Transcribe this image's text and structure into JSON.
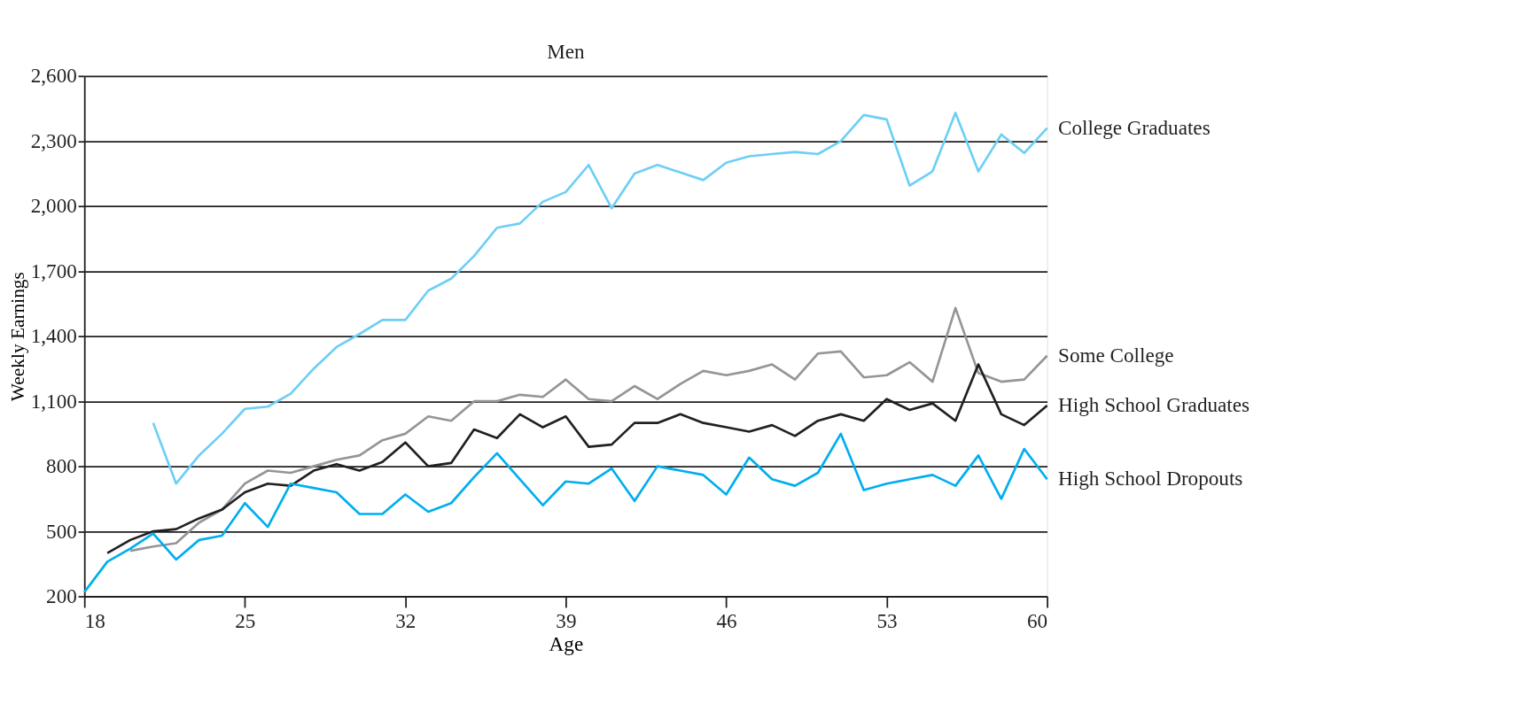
{
  "chart_data": {
    "type": "line",
    "title": "Men",
    "xlabel": "Age",
    "ylabel": "Weekly Earnings",
    "xlim": [
      18,
      60
    ],
    "xticks": [
      18,
      25,
      32,
      39,
      46,
      53,
      60
    ],
    "ylim": [
      200,
      2600
    ],
    "yticks": [
      200,
      500,
      800,
      {
        "value": 1100,
        "label": "1,100"
      },
      {
        "value": 1400,
        "label": "1,400"
      },
      {
        "value": 1700,
        "label": "1,700"
      },
      {
        "value": 2000,
        "label": "2,000"
      },
      {
        "value": 2300,
        "label": "2,300"
      },
      {
        "value": 2600,
        "label": "2,600"
      }
    ],
    "grid": "y",
    "legend": false,
    "line_style": "solid",
    "marker": "none",
    "series": [
      {
        "name": "College Graduates",
        "color": "#6dcff6",
        "x": [
          21,
          22,
          23,
          24,
          25,
          26,
          27,
          28,
          29,
          30,
          31,
          32,
          33,
          34,
          35,
          36,
          37,
          38,
          39,
          40,
          41,
          42,
          43,
          44,
          45,
          46,
          47,
          48,
          49,
          50,
          51,
          52,
          53,
          54,
          55,
          56,
          57,
          58,
          59,
          60
        ],
        "values": [
          1000,
          720,
          850,
          950,
          1065,
          1075,
          1135,
          1250,
          1350,
          1410,
          1475,
          1475,
          1610,
          1665,
          1770,
          1900,
          1920,
          2020,
          2065,
          2190,
          1990,
          2150,
          2190,
          2155,
          2120,
          2200,
          2230,
          2240,
          2250,
          2240,
          2300,
          2420,
          2400,
          2095,
          2160,
          2430,
          2160,
          2330,
          2245,
          2360
        ]
      },
      {
        "name": "Some College",
        "color": "#939598",
        "x": [
          20,
          21,
          22,
          23,
          24,
          25,
          26,
          27,
          28,
          29,
          30,
          31,
          32,
          33,
          34,
          35,
          36,
          37,
          38,
          39,
          40,
          41,
          42,
          43,
          44,
          45,
          46,
          47,
          48,
          49,
          50,
          51,
          52,
          53,
          54,
          55,
          56,
          57,
          58,
          59,
          60
        ],
        "values": [
          410,
          430,
          445,
          540,
          600,
          720,
          780,
          770,
          800,
          830,
          850,
          920,
          950,
          1030,
          1010,
          1100,
          1100,
          1130,
          1120,
          1200,
          1110,
          1100,
          1170,
          1110,
          1180,
          1240,
          1220,
          1240,
          1270,
          1200,
          1320,
          1330,
          1210,
          1220,
          1280,
          1190,
          1530,
          1230,
          1190,
          1200,
          1310
        ]
      },
      {
        "name": "High School Graduates",
        "color": "#231f20",
        "x": [
          19,
          20,
          21,
          22,
          23,
          24,
          25,
          26,
          27,
          28,
          29,
          30,
          31,
          32,
          33,
          34,
          35,
          36,
          37,
          38,
          39,
          40,
          41,
          42,
          43,
          44,
          45,
          46,
          47,
          48,
          49,
          50,
          51,
          52,
          53,
          54,
          55,
          56,
          57,
          58,
          59,
          60
        ],
        "values": [
          400,
          460,
          500,
          510,
          560,
          600,
          680,
          720,
          710,
          780,
          810,
          780,
          820,
          910,
          800,
          815,
          970,
          930,
          1040,
          980,
          1030,
          890,
          900,
          1000,
          1000,
          1040,
          1000,
          980,
          960,
          990,
          940,
          1010,
          1040,
          1010,
          1110,
          1060,
          1090,
          1010,
          1270,
          1040,
          990,
          1080
        ]
      },
      {
        "name": "High School Dropouts",
        "color": "#00aeef",
        "x": [
          18,
          19,
          20,
          21,
          22,
          23,
          24,
          25,
          26,
          27,
          28,
          29,
          30,
          31,
          32,
          33,
          34,
          35,
          36,
          37,
          38,
          39,
          40,
          41,
          42,
          43,
          44,
          45,
          46,
          47,
          48,
          49,
          50,
          51,
          52,
          53,
          54,
          55,
          56,
          57,
          58,
          59,
          60
        ],
        "values": [
          220,
          360,
          420,
          490,
          370,
          460,
          480,
          630,
          520,
          720,
          700,
          680,
          580,
          580,
          670,
          590,
          630,
          750,
          860,
          740,
          620,
          730,
          720,
          790,
          640,
          800,
          780,
          760,
          670,
          840,
          740,
          710,
          770,
          950,
          690,
          720,
          740,
          760,
          710,
          850,
          650,
          880,
          740
        ]
      }
    ]
  }
}
